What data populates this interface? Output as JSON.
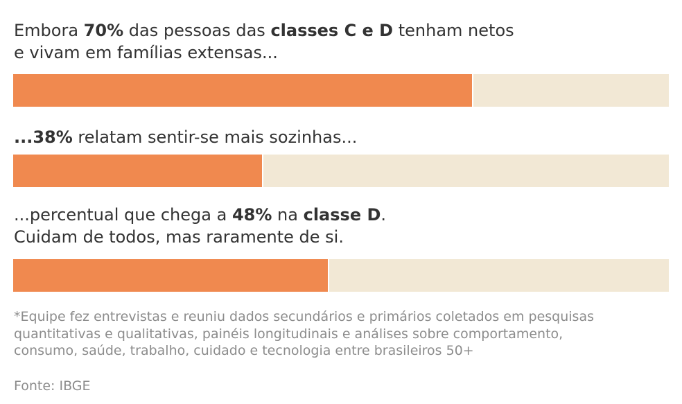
{
  "chart_data": {
    "type": "bar",
    "orientation": "horizontal",
    "xlim": [
      0,
      100
    ],
    "values": [
      70,
      38,
      48
    ],
    "colors": {
      "fill": "#f0894f",
      "track": "#f2e8d5",
      "text": "#333333",
      "muted": "#8c8c8c"
    },
    "annotations": [
      {
        "lines": [
          [
            {
              "text": "Embora ",
              "bold": false
            },
            {
              "text": "70%",
              "bold": true
            },
            {
              "text": " das pessoas das ",
              "bold": false
            },
            {
              "text": "classes C e D",
              "bold": true
            },
            {
              "text": " tenham netos",
              "bold": false
            }
          ],
          [
            {
              "text": "e vivam em famílias extensas...",
              "bold": false
            }
          ]
        ]
      },
      {
        "lines": [
          [
            {
              "text": "...38%",
              "bold": true
            },
            {
              "text": " relatam sentir-se mais sozinhas...",
              "bold": false
            }
          ]
        ]
      },
      {
        "lines": [
          [
            {
              "text": "...percentual que chega a ",
              "bold": false
            },
            {
              "text": "48%",
              "bold": true
            },
            {
              "text": " na ",
              "bold": false
            },
            {
              "text": "classe D",
              "bold": true
            },
            {
              "text": ".",
              "bold": false
            }
          ],
          [
            {
              "text": "Cuidam de todos, mas raramente de si.",
              "bold": false
            }
          ]
        ]
      }
    ],
    "footnote": [
      "*Equipe fez entrevistas e reuniu dados secundários e primários coletados em pesquisas",
      "quantitativas e qualitativas, painéis longitudinais e análises sobre comportamento,",
      "consumo, saúde, trabalho, cuidado e tecnologia entre brasileiros 50+"
    ],
    "source": "Fonte: IBGE"
  }
}
